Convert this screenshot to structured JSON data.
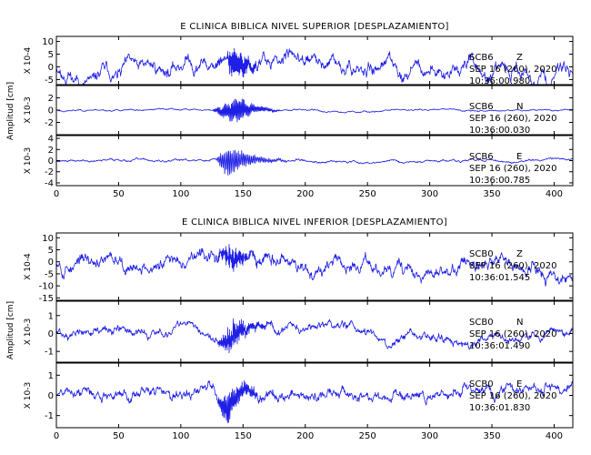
{
  "colors": {
    "trace": "#1f1fe6",
    "axis": "#000000",
    "background": "#ffffff"
  },
  "chart_data": [
    {
      "type": "line",
      "title": "E CLINICA BIBLICA NIVEL SUPERIOR [DESPLAZAMIENTO]",
      "ylabel": "Amplitud [cm]",
      "xlabel": "",
      "xlim": [
        0,
        415
      ],
      "xticks": [
        0,
        50,
        100,
        150,
        200,
        250,
        300,
        350,
        400
      ],
      "panels": [
        {
          "station": "SCB6",
          "component": "Z",
          "date": "SEP 16 (260), 2020",
          "time": "10:36:00.980",
          "scale_label": "X 10-4",
          "ylim": [
            -7,
            12
          ],
          "yticks": [
            -5,
            0,
            5,
            10
          ],
          "trace": {
            "background_amplitude": 3.5,
            "drift_amplitude": 3.5,
            "event_start_s": 128,
            "event_peak_s": 140,
            "event_end_s": 175,
            "event_peak_amplitude": 8,
            "event_frequency_hz": 1.7,
            "seed": 11
          }
        },
        {
          "station": "SCB6",
          "component": "N",
          "date": "SEP 16 (260), 2020",
          "time": "10:36:00.030",
          "scale_label": "X 10-3",
          "ylim": [
            -4,
            4
          ],
          "yticks": [
            -2,
            0,
            2
          ],
          "trace": {
            "background_amplitude": 0.18,
            "drift_amplitude": 0.15,
            "event_start_s": 125,
            "event_peak_s": 146,
            "event_end_s": 180,
            "event_peak_amplitude": 2.6,
            "event_frequency_hz": 2.2,
            "seed": 23
          }
        },
        {
          "station": "SCB6",
          "component": "E",
          "date": "SEP 16 (260), 2020",
          "time": "10:36:00.785",
          "scale_label": "X 10-3",
          "ylim": [
            -4.5,
            4.5
          ],
          "yticks": [
            -4,
            -2,
            0,
            2,
            4
          ],
          "trace": {
            "background_amplitude": 0.3,
            "drift_amplitude": 0.25,
            "event_start_s": 128,
            "event_peak_s": 138,
            "event_end_s": 185,
            "event_peak_amplitude": 3.2,
            "event_frequency_hz": 2.6,
            "seed": 37
          }
        }
      ]
    },
    {
      "type": "line",
      "title": "E CLINICA BIBLICA NIVEL INFERIOR [DESPLAZAMIENTO]",
      "ylabel": "Amplitud [cm]",
      "xlabel": "",
      "xlim": [
        0,
        415
      ],
      "xticks": [
        0,
        50,
        100,
        150,
        200,
        250,
        300,
        350,
        400
      ],
      "panels": [
        {
          "station": "SCB0",
          "component": "Z",
          "date": "SEP 16 (260), 2020",
          "time": "10:36:01.545",
          "scale_label": "X 10-4",
          "ylim": [
            -16,
            12
          ],
          "yticks": [
            -15,
            -10,
            -5,
            0,
            5,
            10
          ],
          "trace": {
            "background_amplitude": 4,
            "drift_amplitude": 3,
            "event_start_s": 128,
            "event_peak_s": 140,
            "event_end_s": 175,
            "event_peak_amplitude": 6,
            "event_frequency_hz": 1.5,
            "seed": 53
          }
        },
        {
          "station": "SCB0",
          "component": "N",
          "date": "SEP 16 (260), 2020",
          "time": "10:36:01.490",
          "scale_label": "X 10-3",
          "ylim": [
            -1.6,
            1.8
          ],
          "yticks": [
            -1,
            0,
            1
          ],
          "trace": {
            "background_amplitude": 0.35,
            "drift_amplitude": 0.3,
            "event_start_s": 128,
            "event_peak_s": 142,
            "event_end_s": 180,
            "event_peak_amplitude": 0.9,
            "event_frequency_hz": 2.0,
            "seed": 71
          }
        },
        {
          "station": "SCB0",
          "component": "E",
          "date": "SEP 16 (260), 2020",
          "time": "10:36:01.830",
          "scale_label": "X 10-3",
          "ylim": [
            -1.6,
            1.6
          ],
          "yticks": [
            -1,
            0,
            1
          ],
          "trace": {
            "background_amplitude": 0.4,
            "drift_amplitude": 0.3,
            "event_start_s": 128,
            "event_peak_s": 138,
            "event_end_s": 180,
            "event_peak_amplitude": 0.9,
            "event_frequency_hz": 2.2,
            "seed": 89
          }
        }
      ]
    }
  ]
}
